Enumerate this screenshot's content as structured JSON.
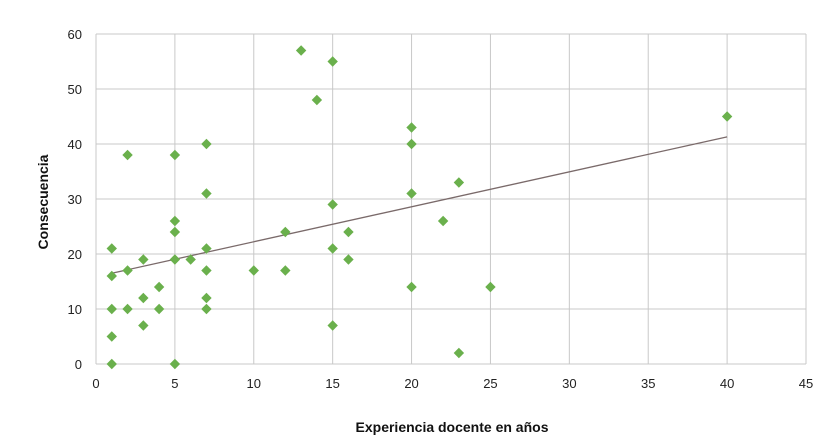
{
  "chart_data": {
    "type": "scatter",
    "xlabel": "Experiencia docente en años",
    "ylabel": "Consecuencia",
    "xlim": [
      0,
      45
    ],
    "ylim": [
      0,
      60
    ],
    "x_ticks": [
      0,
      5,
      10,
      15,
      20,
      25,
      30,
      35,
      40,
      45
    ],
    "y_ticks": [
      0,
      10,
      20,
      30,
      40,
      50,
      60
    ],
    "grid": true,
    "legend": "none",
    "marker_color": "#6ab04c",
    "trendline_color": "#7a6a6a",
    "points": [
      {
        "x": 1,
        "y": 0
      },
      {
        "x": 1,
        "y": 5
      },
      {
        "x": 1,
        "y": 10
      },
      {
        "x": 1,
        "y": 16
      },
      {
        "x": 1,
        "y": 21
      },
      {
        "x": 2,
        "y": 10
      },
      {
        "x": 2,
        "y": 17
      },
      {
        "x": 2,
        "y": 38
      },
      {
        "x": 3,
        "y": 7
      },
      {
        "x": 3,
        "y": 12
      },
      {
        "x": 3,
        "y": 19
      },
      {
        "x": 4,
        "y": 10
      },
      {
        "x": 4,
        "y": 14
      },
      {
        "x": 5,
        "y": 0
      },
      {
        "x": 5,
        "y": 19
      },
      {
        "x": 5,
        "y": 24
      },
      {
        "x": 5,
        "y": 26
      },
      {
        "x": 5,
        "y": 38
      },
      {
        "x": 6,
        "y": 19
      },
      {
        "x": 7,
        "y": 10
      },
      {
        "x": 7,
        "y": 12
      },
      {
        "x": 7,
        "y": 17
      },
      {
        "x": 7,
        "y": 21
      },
      {
        "x": 7,
        "y": 31
      },
      {
        "x": 7,
        "y": 40
      },
      {
        "x": 10,
        "y": 17
      },
      {
        "x": 12,
        "y": 17
      },
      {
        "x": 12,
        "y": 24
      },
      {
        "x": 13,
        "y": 57
      },
      {
        "x": 14,
        "y": 48
      },
      {
        "x": 15,
        "y": 7
      },
      {
        "x": 15,
        "y": 21
      },
      {
        "x": 15,
        "y": 29
      },
      {
        "x": 15,
        "y": 55
      },
      {
        "x": 16,
        "y": 19
      },
      {
        "x": 16,
        "y": 24
      },
      {
        "x": 20,
        "y": 14
      },
      {
        "x": 20,
        "y": 31
      },
      {
        "x": 20,
        "y": 40
      },
      {
        "x": 20,
        "y": 43
      },
      {
        "x": 22,
        "y": 26
      },
      {
        "x": 23,
        "y": 2
      },
      {
        "x": 23,
        "y": 33
      },
      {
        "x": 25,
        "y": 14
      },
      {
        "x": 40,
        "y": 45
      }
    ],
    "trendline": {
      "x": [
        1,
        40
      ],
      "y": [
        16.5,
        41.3
      ]
    }
  }
}
